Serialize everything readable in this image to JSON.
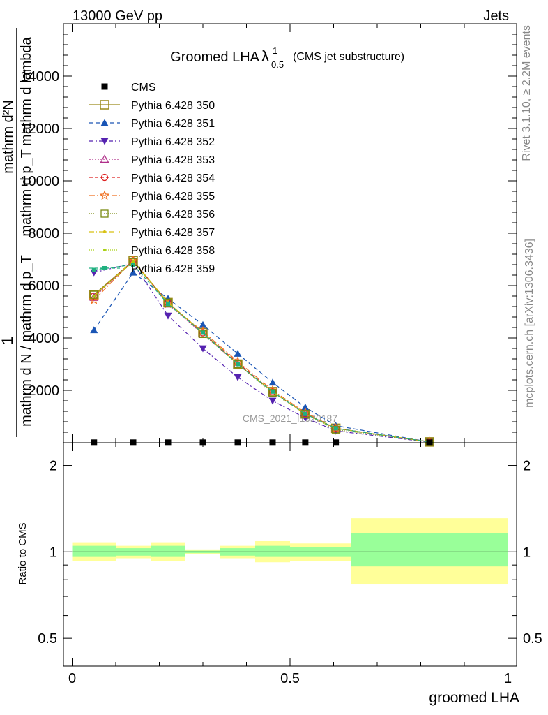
{
  "header": {
    "left": "13000 GeV pp",
    "right": "Jets"
  },
  "side_labels": {
    "rivet": "Rivet 3.1.10, ≥ 2.2M events",
    "mcplots": "mcplots.cern.ch [arXiv:1306.3436]"
  },
  "watermark": "CMS_2021_I1920187",
  "colors": {
    "CMS": "#000000",
    "Pythia 6.428 350": "#9a8a1a",
    "Pythia 6.428 351": "#1a55b5",
    "Pythia 6.428 352": "#5522b0",
    "Pythia 6.428 353": "#b0308a",
    "Pythia 6.428 354": "#dd2020",
    "Pythia 6.428 355": "#f07020",
    "Pythia 6.428 356": "#7a8a10",
    "Pythia 6.428 357": "#d8c010",
    "Pythia 6.428 358": "#a8d010",
    "Pythia 6.428 359": "#20b080",
    "band_inner": "#99ff99",
    "band_outer": "#ffff99"
  },
  "chart_data": [
    {
      "type": "line",
      "title": "Groomed LHA",
      "title_symbol": "λ",
      "title_sup": "1",
      "title_sub": "0.5",
      "title_suffix": "(CMS jet substructure)",
      "ylabel_parts": [
        "1",
        "mathrm d N / mathrm d p_T",
        "mathrm d²N",
        "mathrm d p_T mathrm d lambda"
      ],
      "xlim": [
        -0.02,
        1.02
      ],
      "ylim": [
        0,
        16000
      ],
      "yticks": [
        {
          "v": 2000,
          "label": "2000"
        },
        {
          "v": 4000,
          "label": "4000"
        },
        {
          "v": 6000,
          "label": "6000"
        },
        {
          "v": 8000,
          "label": "8000"
        },
        {
          "v": 10000,
          "label": "10000"
        },
        {
          "v": 12000,
          "label": "12000"
        },
        {
          "v": 14000,
          "label": "14000"
        }
      ],
      "x": [
        0.05,
        0.14,
        0.22,
        0.3,
        0.38,
        0.46,
        0.535,
        0.605,
        0.82
      ],
      "series": [
        {
          "name": "CMS",
          "marker": "square-filled",
          "dash": "",
          "values": [
            5,
            5,
            5,
            5,
            5,
            5,
            5,
            5,
            5
          ]
        },
        {
          "name": "Pythia 6.428 350",
          "marker": "square-open",
          "dash": "",
          "values": [
            5650,
            6950,
            5350,
            4200,
            3000,
            1950,
            1100,
            550,
            30
          ]
        },
        {
          "name": "Pythia 6.428 351",
          "marker": "triangle-up-filled",
          "dash": "6,4",
          "values": [
            4300,
            6500,
            5500,
            4500,
            3400,
            2300,
            1350,
            650,
            30
          ]
        },
        {
          "name": "Pythia 6.428 352",
          "marker": "triangle-down-filled",
          "dash": "6,3,2,3",
          "values": [
            6500,
            6850,
            4850,
            3600,
            2500,
            1600,
            950,
            450,
            25
          ]
        },
        {
          "name": "Pythia 6.428 353",
          "marker": "triangle-up-open",
          "dash": "2,2",
          "values": [
            5550,
            6950,
            5300,
            4150,
            3000,
            1950,
            1100,
            550,
            30
          ]
        },
        {
          "name": "Pythia 6.428 354",
          "marker": "circle-open",
          "dash": "5,3",
          "values": [
            5600,
            6950,
            5350,
            4200,
            3050,
            1950,
            1100,
            550,
            30
          ]
        },
        {
          "name": "Pythia 6.428 355",
          "marker": "star-open",
          "dash": "8,3,2,3",
          "values": [
            5450,
            6950,
            5300,
            4250,
            3100,
            2000,
            1150,
            550,
            30
          ]
        },
        {
          "name": "Pythia 6.428 356",
          "marker": "square-open-small",
          "dash": "1,2",
          "values": [
            5650,
            6900,
            5350,
            4150,
            3000,
            1900,
            1100,
            500,
            30
          ]
        },
        {
          "name": "Pythia 6.428 357",
          "marker": "dot",
          "dash": "7,3,1,3",
          "values": [
            5600,
            6950,
            5350,
            4200,
            3000,
            1950,
            1100,
            550,
            30
          ]
        },
        {
          "name": "Pythia 6.428 358",
          "marker": "dot",
          "dash": "1,2",
          "values": [
            5600,
            6900,
            5350,
            4200,
            3000,
            1950,
            1100,
            550,
            30
          ]
        },
        {
          "name": "Pythia 6.428 359",
          "marker": "square-filled-small",
          "dash": "5,3",
          "values": [
            6600,
            6800,
            5300,
            4200,
            3000,
            1950,
            1100,
            550,
            30
          ]
        }
      ]
    },
    {
      "type": "area",
      "ylabel": "Ratio to CMS",
      "xlabel": "groomed LHA",
      "xlim": [
        -0.02,
        1.02
      ],
      "ylim": [
        0.4,
        2.4
      ],
      "ylog": true,
      "yticks": [
        {
          "v": 0.5,
          "label": "0.5"
        },
        {
          "v": 1,
          "label": "1"
        },
        {
          "v": 2,
          "label": "2"
        }
      ],
      "xticks": [
        {
          "v": 0,
          "label": "0"
        },
        {
          "v": 0.5,
          "label": "0.5"
        },
        {
          "v": 1,
          "label": "1"
        }
      ],
      "bins": [
        {
          "lo": 0.0,
          "hi": 0.1,
          "inner": [
            0.96,
            1.05
          ],
          "outer": [
            0.93,
            1.08
          ]
        },
        {
          "lo": 0.1,
          "hi": 0.18,
          "inner": [
            0.97,
            1.03
          ],
          "outer": [
            0.95,
            1.05
          ]
        },
        {
          "lo": 0.18,
          "hi": 0.26,
          "inner": [
            0.96,
            1.05
          ],
          "outer": [
            0.93,
            1.08
          ]
        },
        {
          "lo": 0.26,
          "hi": 0.34,
          "inner": [
            0.99,
            1.01
          ],
          "outer": [
            0.98,
            1.02
          ]
        },
        {
          "lo": 0.34,
          "hi": 0.42,
          "inner": [
            0.97,
            1.03
          ],
          "outer": [
            0.95,
            1.05
          ]
        },
        {
          "lo": 0.42,
          "hi": 0.5,
          "inner": [
            0.96,
            1.05
          ],
          "outer": [
            0.92,
            1.09
          ]
        },
        {
          "lo": 0.5,
          "hi": 0.64,
          "inner": [
            0.96,
            1.04
          ],
          "outer": [
            0.93,
            1.07
          ]
        },
        {
          "lo": 0.64,
          "hi": 1.0,
          "inner": [
            0.89,
            1.16
          ],
          "outer": [
            0.77,
            1.31
          ]
        }
      ]
    }
  ]
}
